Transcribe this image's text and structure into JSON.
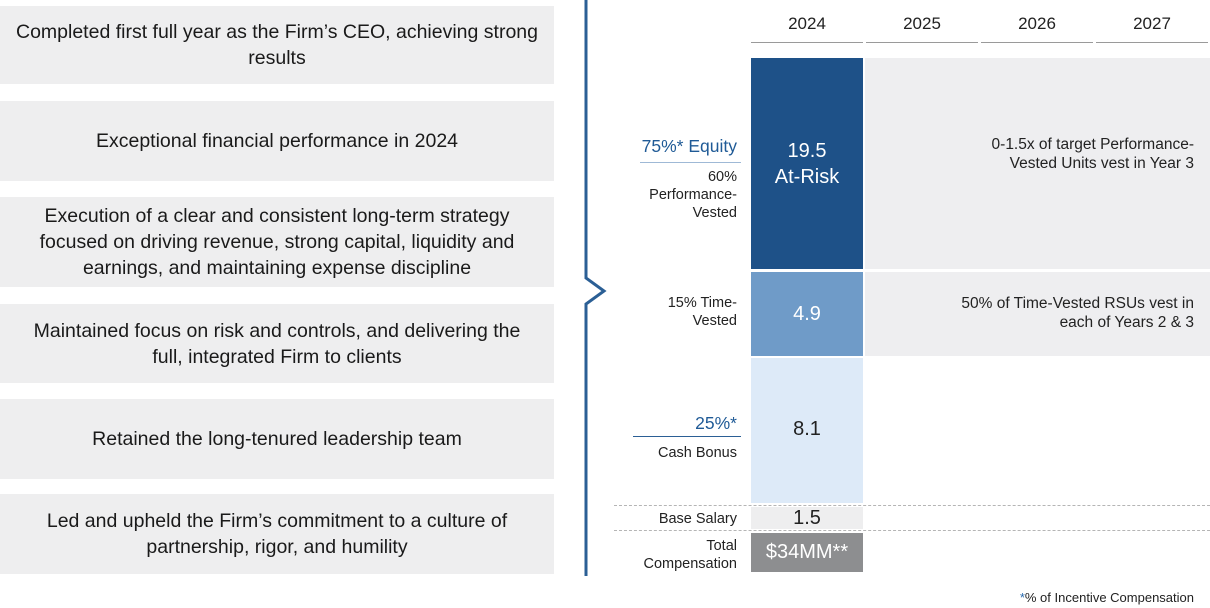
{
  "achievements": [
    "Completed first full year as the Firm’s CEO, achieving strong results",
    "Exceptional financial performance in 2024",
    "Execution of a clear and consistent long-term strategy focused on driving revenue, strong capital, liquidity and earnings, and maintaining expense discipline",
    "Maintained focus on risk and controls, and delivering the full, integrated Firm to clients",
    "Retained the long-tenured leadership team",
    "Led and upheld the Firm’s commitment to a culture of partnership, rigor, and humility"
  ],
  "years": [
    "2024",
    "2025",
    "2026",
    "2027"
  ],
  "rows": {
    "equity_header": "75%* Equity",
    "perf_label": "60% Performance-Vested",
    "perf_value": "19.5",
    "perf_sub": "At-Risk",
    "perf_note": "0-1.5x of target Performance-Vested Units vest in Year 3",
    "time_label": "15% Time-Vested",
    "time_value": "4.9",
    "time_note": "50% of Time-Vested RSUs vest in each of Years 2 & 3",
    "cash_header": "25%*",
    "cash_label": "Cash Bonus",
    "cash_value": "8.1",
    "base_label": "Base Salary",
    "base_value": "1.5",
    "total_label": "Total Compensation",
    "total_value": "$34MM**"
  },
  "footnote": {
    "marker": "*",
    "text": "% of Incentive Compensation"
  },
  "colors": {
    "dark_blue": "#1e5188",
    "mid_blue": "#6f9bc8",
    "light_blue": "#ddeaf8",
    "base_grey": "#eeeeef",
    "total_grey": "#8d8e90"
  }
}
